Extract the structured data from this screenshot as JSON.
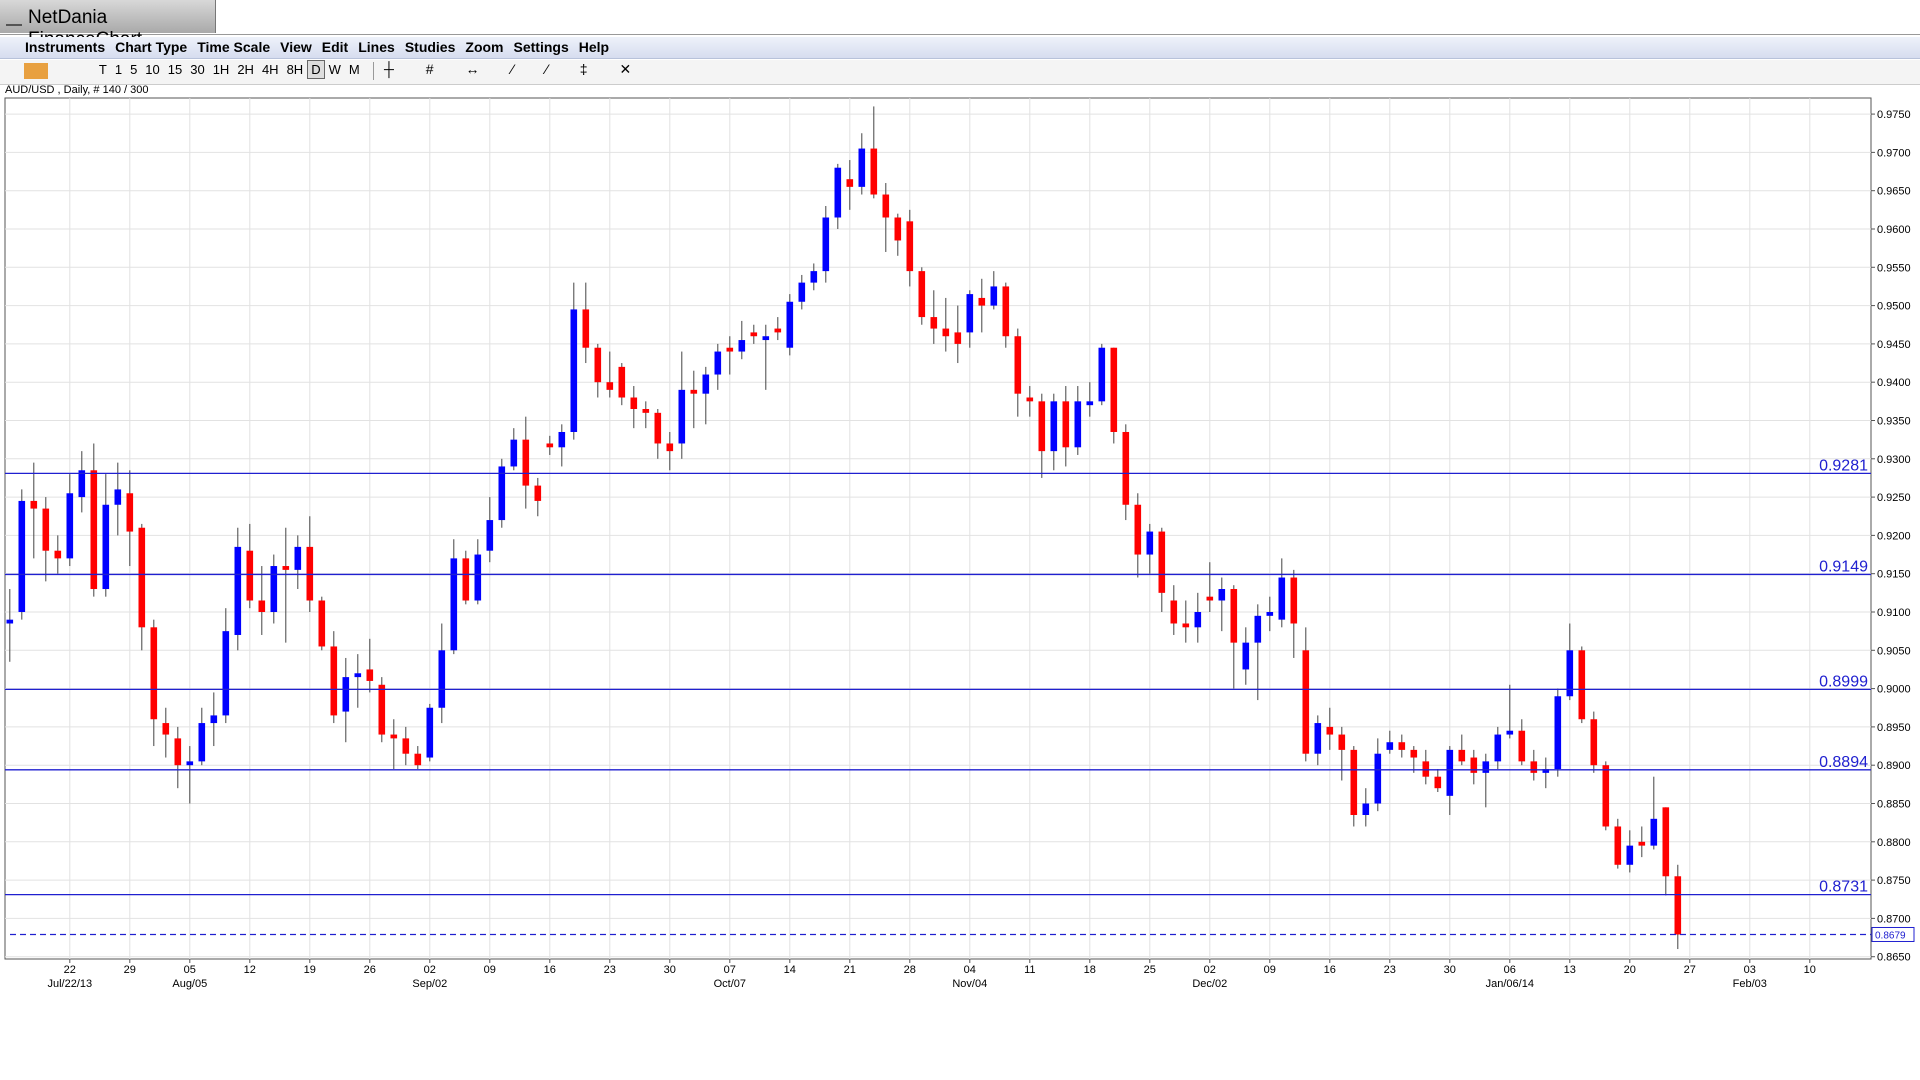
{
  "ui": {
    "window_title": "NetDania FinanceChart",
    "menu": [
      "Instruments",
      "Chart Type",
      "Time Scale",
      "View",
      "Edit",
      "Lines",
      "Studies",
      "Zoom",
      "Settings",
      "Help"
    ],
    "timescales": [
      "T",
      "1",
      "5",
      "10",
      "15",
      "30",
      "1H",
      "2H",
      "4H",
      "8H",
      "D",
      "W",
      "M"
    ],
    "selected_timescale": "D"
  },
  "chart_data": {
    "type": "candlestick",
    "title": "AUD/USD , Daily, # 140 / 300",
    "up_color": "#0000ff",
    "down_color": "#ff0000",
    "grid": true,
    "open": [
      0.9085,
      0.91,
      0.9245,
      0.9235,
      0.918,
      0.917,
      0.925,
      0.9285,
      0.913,
      0.924,
      0.9255,
      0.921,
      0.908,
      0.8955,
      0.8935,
      0.89,
      0.8905,
      0.8955,
      0.8965,
      0.907,
      0.918,
      0.9115,
      0.91,
      0.916,
      0.9155,
      0.9185,
      0.9115,
      0.9055,
      0.897,
      0.9015,
      0.9025,
      0.9005,
      0.894,
      0.8935,
      0.8915,
      0.891,
      0.8975,
      0.905,
      0.917,
      0.9115,
      0.918,
      0.922,
      0.929,
      0.9325,
      0.9265,
      0.932,
      0.9315,
      0.9335,
      0.9495,
      0.9445,
      0.94,
      0.942,
      0.938,
      0.9365,
      0.936,
      0.932,
      0.932,
      0.939,
      0.9385,
      0.941,
      0.9445,
      0.944,
      0.9465,
      0.9455,
      0.947,
      0.9445,
      0.9505,
      0.953,
      0.9545,
      0.9615,
      0.9665,
      0.9655,
      0.9705,
      0.9645,
      0.9615,
      0.961,
      0.9545,
      0.9485,
      0.947,
      0.9465,
      0.9465,
      0.951,
      0.95,
      0.9525,
      0.946,
      0.938,
      0.9375,
      0.931,
      0.9375,
      0.9315,
      0.937,
      0.9375,
      0.9445,
      0.9335,
      0.924,
      0.9175,
      0.9205,
      0.9115,
      0.9085,
      0.908,
      0.912,
      0.9115,
      0.913,
      0.9025,
      0.906,
      0.9095,
      0.909,
      0.9145,
      0.905,
      0.8915,
      0.895,
      0.894,
      0.892,
      0.8835,
      0.885,
      0.892,
      0.893,
      0.892,
      0.8905,
      0.8885,
      0.886,
      0.892,
      0.891,
      0.889,
      0.8905,
      0.894,
      0.8945,
      0.8905,
      0.889,
      0.8895,
      0.899,
      0.905,
      0.896,
      0.89,
      0.882,
      0.877,
      0.88,
      0.8795,
      0.8845,
      0.8755
    ],
    "high": [
      0.913,
      0.926,
      0.9295,
      0.925,
      0.92,
      0.928,
      0.931,
      0.932,
      0.928,
      0.9295,
      0.9285,
      0.9215,
      0.909,
      0.8975,
      0.895,
      0.8925,
      0.8975,
      0.8995,
      0.9105,
      0.921,
      0.9215,
      0.916,
      0.9175,
      0.921,
      0.92,
      0.9225,
      0.912,
      0.9075,
      0.904,
      0.9045,
      0.9065,
      0.9015,
      0.896,
      0.895,
      0.8925,
      0.898,
      0.9085,
      0.9195,
      0.918,
      0.9195,
      0.925,
      0.93,
      0.934,
      0.9355,
      0.9275,
      0.933,
      0.9345,
      0.953,
      0.953,
      0.945,
      0.944,
      0.9425,
      0.9395,
      0.9375,
      0.9365,
      0.9335,
      0.944,
      0.9415,
      0.942,
      0.945,
      0.946,
      0.948,
      0.9475,
      0.9475,
      0.9485,
      0.9515,
      0.954,
      0.9555,
      0.963,
      0.9685,
      0.969,
      0.9725,
      0.976,
      0.966,
      0.962,
      0.9625,
      0.955,
      0.952,
      0.951,
      0.95,
      0.952,
      0.9535,
      0.9545,
      0.953,
      0.947,
      0.9395,
      0.9385,
      0.9385,
      0.9395,
      0.9395,
      0.94,
      0.945,
      0.9445,
      0.9345,
      0.9255,
      0.9215,
      0.921,
      0.9135,
      0.9115,
      0.9125,
      0.9165,
      0.9145,
      0.9135,
      0.908,
      0.911,
      0.912,
      0.917,
      0.9155,
      0.908,
      0.8965,
      0.8975,
      0.895,
      0.8925,
      0.887,
      0.8935,
      0.8945,
      0.894,
      0.8925,
      0.892,
      0.8895,
      0.8925,
      0.894,
      0.892,
      0.8915,
      0.895,
      0.9005,
      0.896,
      0.892,
      0.891,
      0.9,
      0.9085,
      0.9055,
      0.897,
      0.8905,
      0.883,
      0.8815,
      0.882,
      0.8885,
      0.8845,
      0.877
    ],
    "low": [
      0.9035,
      0.909,
      0.917,
      0.914,
      0.915,
      0.916,
      0.923,
      0.912,
      0.912,
      0.92,
      0.916,
      0.905,
      0.8925,
      0.891,
      0.887,
      0.885,
      0.89,
      0.8925,
      0.8955,
      0.905,
      0.9105,
      0.907,
      0.9085,
      0.906,
      0.913,
      0.91,
      0.905,
      0.8955,
      0.893,
      0.8975,
      0.8995,
      0.893,
      0.8895,
      0.89,
      0.8895,
      0.8905,
      0.8955,
      0.9045,
      0.911,
      0.911,
      0.9165,
      0.921,
      0.9285,
      0.9235,
      0.9225,
      0.9305,
      0.929,
      0.9325,
      0.9425,
      0.938,
      0.938,
      0.937,
      0.934,
      0.934,
      0.93,
      0.9285,
      0.93,
      0.934,
      0.9345,
      0.939,
      0.941,
      0.943,
      0.945,
      0.939,
      0.9455,
      0.9435,
      0.9495,
      0.952,
      0.953,
      0.96,
      0.9625,
      0.9645,
      0.964,
      0.957,
      0.9565,
      0.9525,
      0.9475,
      0.945,
      0.944,
      0.9425,
      0.9445,
      0.9465,
      0.9495,
      0.9445,
      0.9355,
      0.9355,
      0.9275,
      0.9285,
      0.929,
      0.9305,
      0.9355,
      0.937,
      0.932,
      0.922,
      0.9145,
      0.915,
      0.91,
      0.907,
      0.906,
      0.906,
      0.91,
      0.9075,
      0.9,
      0.9005,
      0.8985,
      0.9075,
      0.908,
      0.904,
      0.8905,
      0.89,
      0.892,
      0.888,
      0.882,
      0.882,
      0.884,
      0.8915,
      0.891,
      0.889,
      0.8875,
      0.8865,
      0.8835,
      0.89,
      0.8875,
      0.8845,
      0.8895,
      0.8935,
      0.89,
      0.888,
      0.887,
      0.8885,
      0.8985,
      0.8955,
      0.889,
      0.8815,
      0.8765,
      0.876,
      0.878,
      0.879,
      0.873,
      0.866
    ],
    "close": [
      0.909,
      0.9245,
      0.9235,
      0.918,
      0.917,
      0.9255,
      0.9285,
      0.913,
      0.924,
      0.926,
      0.9205,
      0.908,
      0.896,
      0.894,
      0.89,
      0.8905,
      0.8955,
      0.8965,
      0.9075,
      0.9185,
      0.9115,
      0.91,
      0.916,
      0.9155,
      0.9185,
      0.9115,
      0.9055,
      0.8965,
      0.9015,
      0.902,
      0.901,
      0.894,
      0.8935,
      0.8915,
      0.89,
      0.8975,
      0.905,
      0.917,
      0.9115,
      0.9175,
      0.922,
      0.929,
      0.9325,
      0.9265,
      0.9245,
      0.9315,
      0.9335,
      0.9495,
      0.9445,
      0.94,
      0.939,
      0.938,
      0.9365,
      0.936,
      0.932,
      0.931,
      0.939,
      0.9385,
      0.941,
      0.944,
      0.944,
      0.9455,
      0.946,
      0.946,
      0.9465,
      0.9505,
      0.953,
      0.9545,
      0.9615,
      0.968,
      0.9655,
      0.9705,
      0.9645,
      0.9615,
      0.9585,
      0.9545,
      0.9485,
      0.947,
      0.946,
      0.945,
      0.9515,
      0.95,
      0.9525,
      0.946,
      0.9385,
      0.9375,
      0.931,
      0.9375,
      0.9315,
      0.9375,
      0.9375,
      0.9445,
      0.9335,
      0.924,
      0.9175,
      0.9205,
      0.9125,
      0.9085,
      0.908,
      0.91,
      0.9115,
      0.913,
      0.906,
      0.906,
      0.9095,
      0.91,
      0.9145,
      0.9085,
      0.8915,
      0.8955,
      0.894,
      0.892,
      0.8835,
      0.885,
      0.8915,
      0.893,
      0.892,
      0.891,
      0.8885,
      0.887,
      0.892,
      0.8905,
      0.889,
      0.8905,
      0.894,
      0.8945,
      0.8905,
      0.889,
      0.8895,
      0.899,
      0.905,
      0.896,
      0.89,
      0.882,
      0.877,
      0.8795,
      0.8795,
      0.883,
      0.8755,
      0.8679
    ],
    "xlim": [
      -0.4,
      155.1
    ],
    "xticks": [
      {
        "value": 5,
        "label": "22"
      },
      {
        "value": 10,
        "label": "29"
      },
      {
        "value": 15,
        "label": "05"
      },
      {
        "value": 20,
        "label": "12"
      },
      {
        "value": 25,
        "label": "19"
      },
      {
        "value": 30,
        "label": "26"
      },
      {
        "value": 35,
        "label": "02"
      },
      {
        "value": 40,
        "label": "09"
      },
      {
        "value": 45,
        "label": "16"
      },
      {
        "value": 50,
        "label": "23"
      },
      {
        "value": 55,
        "label": "30"
      },
      {
        "value": 60,
        "label": "07"
      },
      {
        "value": 65,
        "label": "14"
      },
      {
        "value": 70,
        "label": "21"
      },
      {
        "value": 75,
        "label": "28"
      },
      {
        "value": 80,
        "label": "04"
      },
      {
        "value": 85,
        "label": "11"
      },
      {
        "value": 90,
        "label": "18"
      },
      {
        "value": 95,
        "label": "25"
      },
      {
        "value": 100,
        "label": "02"
      },
      {
        "value": 105,
        "label": "09"
      },
      {
        "value": 110,
        "label": "16"
      },
      {
        "value": 115,
        "label": "23"
      },
      {
        "value": 120,
        "label": "30"
      },
      {
        "value": 125,
        "label": "06"
      },
      {
        "value": 130,
        "label": "13"
      },
      {
        "value": 135,
        "label": "20"
      },
      {
        "value": 140,
        "label": "27"
      },
      {
        "value": 145,
        "label": "03"
      },
      {
        "value": 150,
        "label": "10"
      }
    ],
    "date_labels": [
      {
        "value": 5,
        "label": "Jul/22/13"
      },
      {
        "value": 15,
        "label": "Aug/05"
      },
      {
        "value": 35,
        "label": "Sep/02"
      },
      {
        "value": 60,
        "label": "Oct/07"
      },
      {
        "value": 80,
        "label": "Nov/04"
      },
      {
        "value": 100,
        "label": "Dec/02"
      },
      {
        "value": 125,
        "label": "Jan/06/14"
      },
      {
        "value": 145,
        "label": "Feb/03"
      }
    ],
    "ylim": [
      0.8647,
      0.9771
    ],
    "yticks": [
      {
        "value": 0.865,
        "label": "0.8650"
      },
      {
        "value": 0.87,
        "label": "0.8700"
      },
      {
        "value": 0.875,
        "label": "0.8750"
      },
      {
        "value": 0.88,
        "label": "0.8800"
      },
      {
        "value": 0.885,
        "label": "0.8850"
      },
      {
        "value": 0.89,
        "label": "0.8900"
      },
      {
        "value": 0.895,
        "label": "0.8950"
      },
      {
        "value": 0.9,
        "label": "0.9000"
      },
      {
        "value": 0.905,
        "label": "0.9050"
      },
      {
        "value": 0.91,
        "label": "0.9100"
      },
      {
        "value": 0.915,
        "label": "0.9150"
      },
      {
        "value": 0.92,
        "label": "0.9200"
      },
      {
        "value": 0.925,
        "label": "0.9250"
      },
      {
        "value": 0.93,
        "label": "0.9300"
      },
      {
        "value": 0.935,
        "label": "0.9350"
      },
      {
        "value": 0.94,
        "label": "0.9400"
      },
      {
        "value": 0.945,
        "label": "0.9450"
      },
      {
        "value": 0.95,
        "label": "0.9500"
      },
      {
        "value": 0.955,
        "label": "0.9550"
      },
      {
        "value": 0.96,
        "label": "0.9600"
      },
      {
        "value": 0.965,
        "label": "0.9650"
      },
      {
        "value": 0.97,
        "label": "0.9700"
      },
      {
        "value": 0.975,
        "label": "0.9750"
      }
    ],
    "hlines": [
      0.9281,
      0.9149,
      0.8999,
      0.8894,
      0.8731
    ],
    "hline_color": "#2020d0",
    "last_price": 0.8679
  }
}
